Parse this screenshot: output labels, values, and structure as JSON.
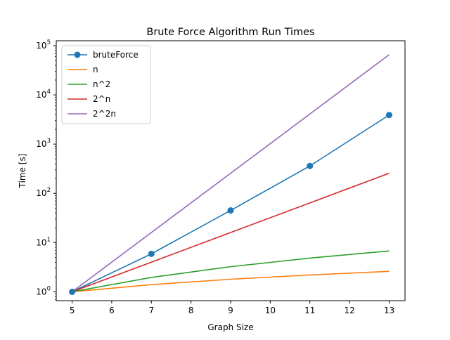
{
  "chart_data": {
    "type": "line",
    "title": "Brute Force Algorithm Run Times",
    "xlabel": "Graph Size",
    "ylabel": "Time [s]",
    "yscale": "log",
    "xlim": [
      4.6,
      13.4
    ],
    "ylim_log10": [
      -0.18,
      5.1
    ],
    "xticks": [
      5,
      6,
      7,
      8,
      9,
      10,
      11,
      12,
      13
    ],
    "yticks": [
      {
        "base": "10",
        "exp": "0",
        "log": 0
      },
      {
        "base": "10",
        "exp": "1",
        "log": 1
      },
      {
        "base": "10",
        "exp": "2",
        "log": 2
      },
      {
        "base": "10",
        "exp": "3",
        "log": 3
      },
      {
        "base": "10",
        "exp": "4",
        "log": 4
      },
      {
        "base": "10",
        "exp": "5",
        "log": 5
      }
    ],
    "legend_position": "top-left",
    "series": [
      {
        "name": "bruteForce",
        "color": "#1f77b4",
        "marker": "circle",
        "x": [
          5,
          7,
          9,
          11,
          13
        ],
        "y": [
          1.0,
          5.9,
          45,
          360,
          3900
        ]
      },
      {
        "name": "n",
        "color": "#ff7f0e",
        "marker": "none",
        "x": [
          5,
          7,
          9,
          11,
          13
        ],
        "y": [
          1.0,
          1.4,
          1.8,
          2.2,
          2.6
        ]
      },
      {
        "name": "n^2",
        "color": "#2ca02c",
        "marker": "none",
        "x": [
          5,
          7,
          9,
          11,
          13
        ],
        "y": [
          1.0,
          1.96,
          3.24,
          4.84,
          6.76
        ]
      },
      {
        "name": "2^n",
        "color": "#d62728",
        "marker": "none",
        "x": [
          5,
          7,
          9,
          11,
          13
        ],
        "y": [
          1,
          4,
          16,
          64,
          256
        ]
      },
      {
        "name": "2^2n",
        "color": "#9467bd",
        "marker": "none",
        "x": [
          5,
          7,
          9,
          11,
          13
        ],
        "y": [
          1,
          16,
          256,
          4096,
          65536
        ]
      }
    ]
  }
}
